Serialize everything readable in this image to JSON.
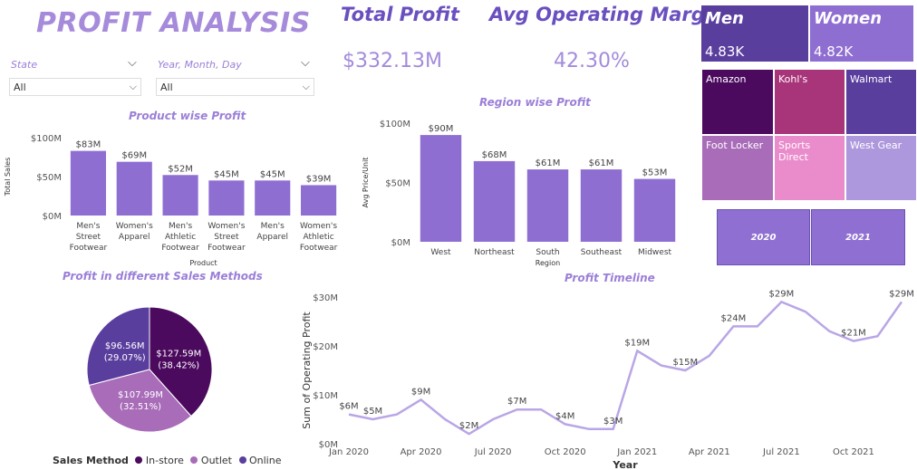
{
  "page_title": "PROFIT ANALYSIS",
  "slicers": [
    {
      "label": "State",
      "value": "All"
    },
    {
      "label": "Year, Month, Day",
      "value": "All"
    }
  ],
  "kpis": [
    {
      "title": "Total Profit",
      "value": "$332.13M"
    },
    {
      "title": "Avg Operating Margin",
      "value": "42.30%"
    }
  ],
  "gender_cards": [
    {
      "label": "Men",
      "value": "4.83K",
      "color": "#5a3e9e"
    },
    {
      "label": "Women",
      "value": "4.82K",
      "color": "#8f6ed2"
    }
  ],
  "retailers": [
    {
      "name": "Amazon",
      "color": "#4b0a5e"
    },
    {
      "name": "Kohl's",
      "color": "#a8347a"
    },
    {
      "name": "Walmart",
      "color": "#5a3e9e"
    },
    {
      "name": "Foot Locker",
      "color": "#a86cb8"
    },
    {
      "name": "Sports Direct",
      "color": "#ea8ccb"
    },
    {
      "name": "West Gear",
      "color": "#ae98dd"
    }
  ],
  "years": [
    "2020",
    "2021"
  ],
  "colors": {
    "accent": "#9a7fd8",
    "bar": "#8f6ed2",
    "line": "#b9a6e6",
    "title": "#6a4fbf"
  },
  "chart_data": [
    {
      "type": "bar",
      "title": "Product wise Profit",
      "xlabel": "Product",
      "ylabel": "Total Sales",
      "categories": [
        "Men's Street Footwear",
        "Women's Apparel",
        "Men's Athletic Footwear",
        "Women's Street Footwear",
        "Men's Apparel",
        "Women's Athletic Footwear"
      ],
      "values": [
        83,
        69,
        52,
        45,
        45,
        39
      ],
      "data_labels": [
        "$83M",
        "$69M",
        "$52M",
        "$45M",
        "$45M",
        "$39M"
      ],
      "ylim": [
        0,
        100
      ],
      "yticks": [
        "$0M",
        "$50M",
        "$100M"
      ]
    },
    {
      "type": "bar",
      "title": "Region wise Profit",
      "xlabel": "Region",
      "ylabel": "Avg Price/Unit",
      "categories": [
        "West",
        "Northeast",
        "South",
        "Southeast",
        "Midwest"
      ],
      "values": [
        90,
        68,
        61,
        61,
        53
      ],
      "data_labels": [
        "$90M",
        "$68M",
        "$61M",
        "$61M",
        "$53M"
      ],
      "ylim": [
        0,
        100
      ],
      "yticks": [
        "$0M",
        "$50M",
        "$100M"
      ]
    },
    {
      "type": "pie",
      "title": "Profit in different Sales Methods",
      "legend_title": "Sales Method",
      "slices": [
        {
          "name": "In-store",
          "value": 127.59,
          "label": "$127.59M",
          "pct": "(38.42%)",
          "color": "#4b0a5e"
        },
        {
          "name": "Outlet",
          "value": 107.99,
          "label": "$107.99M",
          "pct": "(32.51%)",
          "color": "#a86cb8"
        },
        {
          "name": "Online",
          "value": 96.56,
          "label": "$96.56M",
          "pct": "(29.07%)",
          "color": "#5a3e9e"
        }
      ]
    },
    {
      "type": "line",
      "title": "Profit Timeline",
      "xlabel": "Year",
      "ylabel": "Sum of Operating Profit",
      "x": [
        "2020-01",
        "2020-02",
        "2020-03",
        "2020-04",
        "2020-05",
        "2020-06",
        "2020-07",
        "2020-08",
        "2020-09",
        "2020-10",
        "2020-11",
        "2020-12",
        "2021-01",
        "2021-02",
        "2021-03",
        "2021-04",
        "2021-05",
        "2021-06",
        "2021-07",
        "2021-08",
        "2021-09",
        "2021-10",
        "2021-11",
        "2021-12"
      ],
      "values": [
        6,
        5,
        6,
        9,
        5,
        2,
        5,
        7,
        7,
        4,
        3,
        3,
        19,
        16,
        15,
        18,
        24,
        24,
        29,
        27,
        23,
        21,
        22,
        29
      ],
      "point_labels": [
        {
          "index": 0,
          "text": "$6M"
        },
        {
          "index": 1,
          "text": "$5M"
        },
        {
          "index": 3,
          "text": "$9M"
        },
        {
          "index": 5,
          "text": "$2M"
        },
        {
          "index": 7,
          "text": "$7M"
        },
        {
          "index": 9,
          "text": "$4M"
        },
        {
          "index": 11,
          "text": "$3M"
        },
        {
          "index": 12,
          "text": "$19M"
        },
        {
          "index": 14,
          "text": "$15M"
        },
        {
          "index": 16,
          "text": "$24M"
        },
        {
          "index": 18,
          "text": "$29M"
        },
        {
          "index": 21,
          "text": "$21M"
        },
        {
          "index": 23,
          "text": "$29M"
        }
      ],
      "xticks": [
        {
          "index": 0,
          "text": "Jan 2020"
        },
        {
          "index": 3,
          "text": "Apr 2020"
        },
        {
          "index": 6,
          "text": "Jul 2020"
        },
        {
          "index": 9,
          "text": "Oct 2020"
        },
        {
          "index": 12,
          "text": "Jan 2021"
        },
        {
          "index": 15,
          "text": "Apr 2021"
        },
        {
          "index": 18,
          "text": "Jul 2021"
        },
        {
          "index": 21,
          "text": "Oct 2021"
        }
      ],
      "ylim": [
        0,
        30
      ],
      "yticks": [
        "$0M",
        "$10M",
        "$20M",
        "$30M"
      ]
    }
  ]
}
